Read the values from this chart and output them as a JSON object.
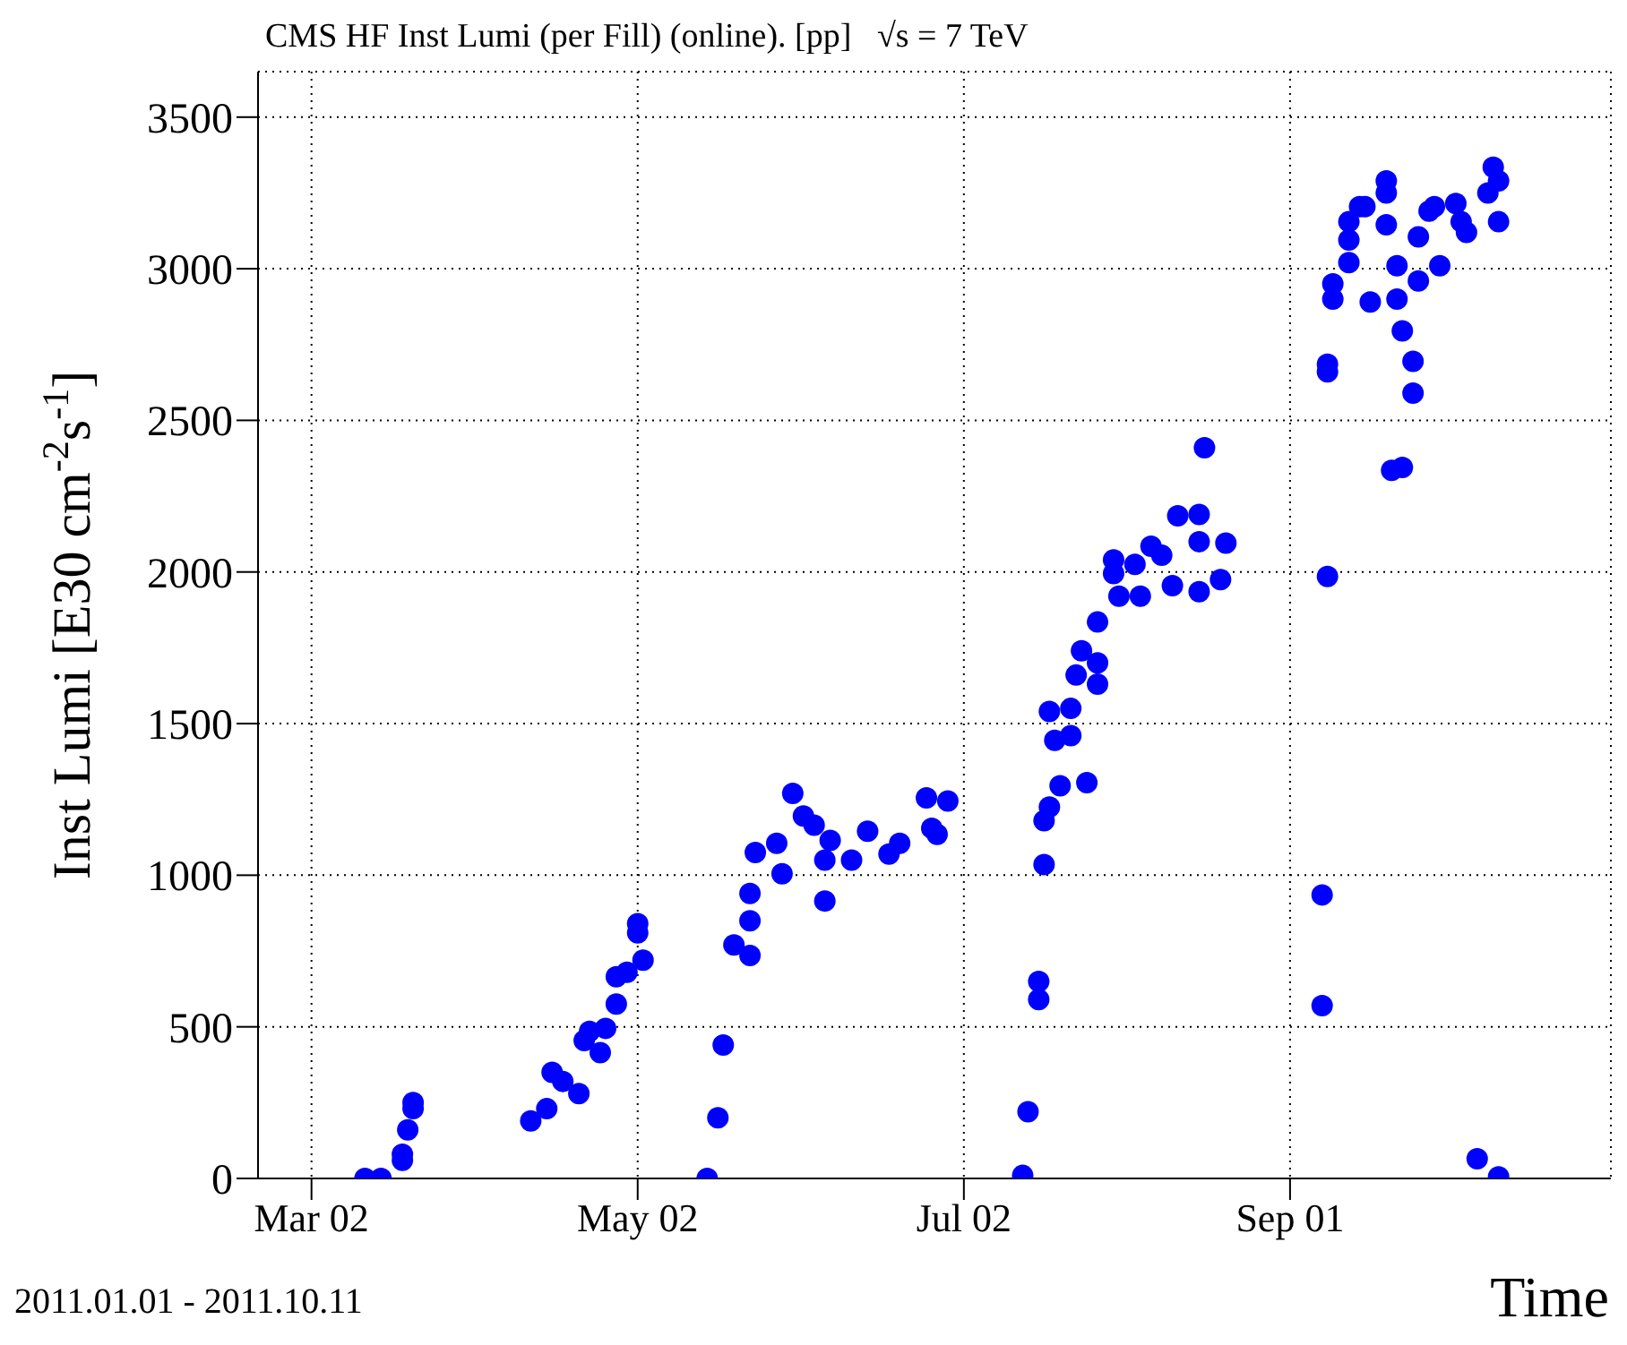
{
  "chart_data": {
    "type": "scatter",
    "title": "CMS HF Inst Lumi (per Fill) (online). [pp]   √s = 7 TeV",
    "xlabel": "Time",
    "ylabel": "Inst Lumi [E30 cm$^{-2}$s$^{-1}$]",
    "annotations": [
      "2011.01.01 - 2011.10.11"
    ],
    "xlim": [
      "2011-02-20",
      "2011-10-31"
    ],
    "xticks": [
      {
        "value": "2011-03-02",
        "label": "Mar 02"
      },
      {
        "value": "2011-05-02",
        "label": "May 02"
      },
      {
        "value": "2011-07-02",
        "label": "Jul 02"
      },
      {
        "value": "2011-09-01",
        "label": "Sep 01"
      }
    ],
    "ylim": [
      0,
      3650
    ],
    "yticks": [
      0,
      500,
      1000,
      1500,
      2000,
      2500,
      3000,
      3500
    ],
    "grid": true,
    "marker": "circle",
    "series": [
      {
        "color": "#0000ff",
        "x": [
          "2011-03-12",
          "2011-03-15",
          "2011-03-19",
          "2011-03-19",
          "2011-03-20",
          "2011-03-21",
          "2011-03-21",
          "2011-04-12",
          "2011-04-15",
          "2011-04-16",
          "2011-04-18",
          "2011-04-21",
          "2011-04-22",
          "2011-04-23",
          "2011-04-25",
          "2011-04-26",
          "2011-04-28",
          "2011-04-28",
          "2011-04-30",
          "2011-05-02",
          "2011-05-02",
          "2011-05-03",
          "2011-05-15",
          "2011-05-17",
          "2011-05-18",
          "2011-05-20",
          "2011-05-23",
          "2011-05-23",
          "2011-05-23",
          "2011-05-24",
          "2011-05-28",
          "2011-05-29",
          "2011-05-31",
          "2011-06-02",
          "2011-06-04",
          "2011-06-06",
          "2011-06-06",
          "2011-06-07",
          "2011-06-11",
          "2011-06-14",
          "2011-06-18",
          "2011-06-20",
          "2011-06-25",
          "2011-06-26",
          "2011-06-27",
          "2011-06-29",
          "2011-07-13",
          "2011-07-14",
          "2011-07-16",
          "2011-07-16",
          "2011-07-17",
          "2011-07-17",
          "2011-07-18",
          "2011-07-20",
          "2011-07-25",
          "2011-07-18",
          "2011-07-19",
          "2011-07-22",
          "2011-07-22",
          "2011-07-23",
          "2011-07-24",
          "2011-07-27",
          "2011-07-27",
          "2011-07-27",
          "2011-07-30",
          "2011-07-30",
          "2011-07-31",
          "2011-08-03",
          "2011-08-04",
          "2011-08-06",
          "2011-08-08",
          "2011-08-10",
          "2011-08-11",
          "2011-08-15",
          "2011-08-15",
          "2011-08-16",
          "2011-08-15",
          "2011-08-20",
          "2011-08-19",
          "2011-09-07",
          "2011-09-07",
          "2011-09-08",
          "2011-09-08",
          "2011-09-08",
          "2011-09-09",
          "2011-09-09",
          "2011-09-12",
          "2011-09-12",
          "2011-09-12",
          "2011-09-14",
          "2011-09-15",
          "2011-09-16",
          "2011-09-19",
          "2011-09-19",
          "2011-09-19",
          "2011-09-20",
          "2011-09-22",
          "2011-09-21",
          "2011-09-21",
          "2011-09-22",
          "2011-09-24",
          "2011-09-24",
          "2011-09-25",
          "2011-09-25",
          "2011-09-27",
          "2011-09-28",
          "2011-09-29",
          "2011-10-02",
          "2011-10-03",
          "2011-10-04",
          "2011-10-08",
          "2011-10-09",
          "2011-10-10",
          "2011-10-10",
          "2011-10-06",
          "2011-10-10"
        ],
        "values": [
          0,
          0,
          60,
          80,
          160,
          250,
          230,
          190,
          230,
          350,
          320,
          280,
          455,
          485,
          415,
          495,
          575,
          665,
          680,
          810,
          840,
          720,
          0,
          200,
          440,
          770,
          735,
          850,
          940,
          1075,
          1105,
          1005,
          1270,
          1195,
          1165,
          915,
          1050,
          1115,
          1050,
          1145,
          1070,
          1105,
          1255,
          1155,
          1135,
          1245,
          10,
          220,
          590,
          650,
          1035,
          1180,
          1225,
          1295,
          1305,
          1540,
          1445,
          1460,
          1550,
          1660,
          1740,
          1700,
          1630,
          1835,
          2040,
          1995,
          1920,
          2025,
          1920,
          2085,
          2055,
          1955,
          2185,
          1935,
          2190,
          2410,
          2100,
          2095,
          1975,
          570,
          935,
          1985,
          2660,
          2685,
          2900,
          2950,
          3020,
          3095,
          3155,
          3205,
          3205,
          2890,
          3145,
          3290,
          3250,
          2335,
          2345,
          2900,
          3010,
          2795,
          2695,
          2590,
          2960,
          3105,
          3190,
          3205,
          3010,
          3215,
          3155,
          3120,
          3250,
          3335,
          3155,
          3290,
          65,
          5
        ]
      }
    ]
  }
}
